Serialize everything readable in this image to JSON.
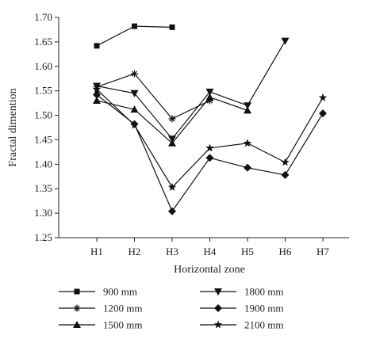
{
  "chart_data": {
    "type": "line",
    "title": "",
    "xlabel": "Horizontal zone",
    "ylabel": "Fractal dimention",
    "categories": [
      "H1",
      "H2",
      "H3",
      "H4",
      "H5",
      "H6",
      "H7"
    ],
    "ylim": [
      1.25,
      1.7
    ],
    "yticks": [
      "1.25",
      "1.30",
      "1.35",
      "1.40",
      "1.45",
      "1.50",
      "1.55",
      "1.60",
      "1.65",
      "1.70"
    ],
    "grid": false,
    "legend": "bottom",
    "series": [
      {
        "name": "900 mm",
        "marker": "square",
        "values": [
          1.642,
          1.682,
          1.68,
          null,
          null,
          null,
          null
        ]
      },
      {
        "name": "1200 mm",
        "marker": "asterisk",
        "values": [
          1.558,
          1.585,
          1.493,
          1.53,
          null,
          null,
          null
        ]
      },
      {
        "name": "1500 mm",
        "marker": "triangle-up",
        "values": [
          1.53,
          1.512,
          1.443,
          1.537,
          1.51,
          null,
          null
        ]
      },
      {
        "name": "1800 mm",
        "marker": "triangle-down",
        "values": [
          1.56,
          1.545,
          1.452,
          1.548,
          1.52,
          1.652,
          null
        ]
      },
      {
        "name": "1900 mm",
        "marker": "diamond",
        "values": [
          1.542,
          1.482,
          1.304,
          1.413,
          1.393,
          1.378,
          1.504
        ]
      },
      {
        "name": "2100 mm",
        "marker": "star",
        "values": [
          1.553,
          1.48,
          1.353,
          1.433,
          1.443,
          1.404,
          1.536
        ]
      }
    ]
  }
}
